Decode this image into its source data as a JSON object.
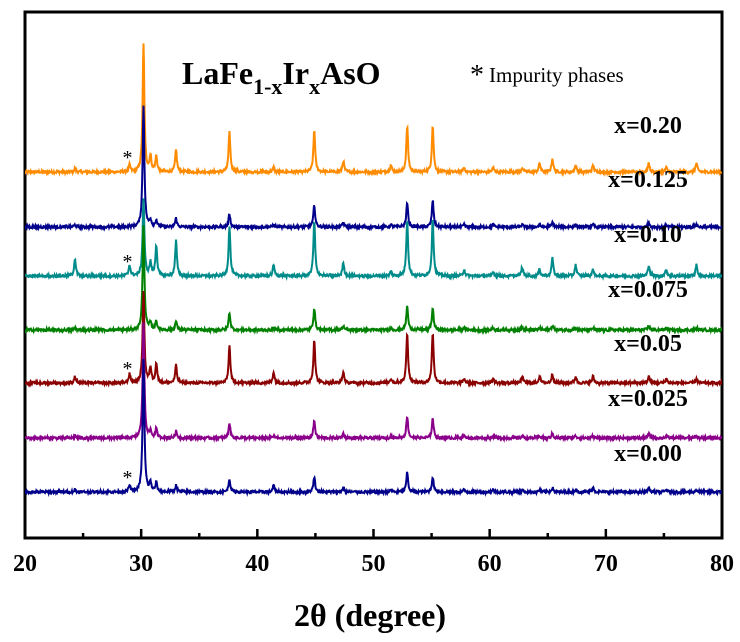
{
  "chart_data": {
    "type": "line",
    "title_main": "LaFe",
    "title_sub1": "1-x",
    "title_mid": "Ir",
    "title_sub2": "x",
    "title_end": "AsO",
    "impurity_marker": "*",
    "impurity_label": "Impurity phases",
    "xlabel": "2θ (degree)",
    "ylabel": "",
    "xlim": [
      20,
      80
    ],
    "x_ticks": [
      "20",
      "30",
      "40",
      "50",
      "60",
      "70",
      "80"
    ],
    "y_ticks_visible": false,
    "grid": false,
    "impurity_peak_2theta": 29.0,
    "peaks_2theta": [
      24.3,
      29.0,
      30.2,
      30.8,
      31.3,
      33.0,
      37.6,
      41.4,
      44.9,
      47.4,
      51.5,
      52.9,
      55.1,
      57.8,
      60.3,
      62.8,
      64.3,
      65.4,
      67.4,
      68.9,
      73.7,
      75.2,
      77.8
    ],
    "series": [
      {
        "name": "x=0.20",
        "color": "#ff8c00",
        "has_impurity": true,
        "intensities": [
          0.15,
          0.3,
          5.8,
          0.7,
          0.7,
          1.0,
          1.8,
          0.2,
          1.9,
          0.5,
          0.3,
          2.1,
          2.1,
          0.2,
          0.2,
          0.2,
          0.4,
          0.6,
          0.3,
          0.3,
          0.4,
          0.2,
          0.4
        ]
      },
      {
        "name": "x=0.125",
        "color": "#00008b",
        "has_impurity": false,
        "intensities": [
          0.1,
          0.0,
          5.5,
          0.3,
          0.3,
          0.4,
          0.6,
          0.1,
          1.0,
          0.2,
          0.1,
          1.1,
          1.2,
          0.1,
          0.1,
          0.1,
          0.1,
          0.2,
          0.1,
          0.1,
          0.2,
          0.1,
          0.1
        ]
      },
      {
        "name": "x=0.10",
        "color": "#008b8b",
        "has_impurity": true,
        "intensities": [
          0.8,
          0.5,
          3.5,
          0.6,
          1.4,
          1.6,
          2.3,
          0.5,
          2.5,
          0.6,
          0.2,
          2.6,
          2.6,
          0.3,
          0.2,
          0.4,
          0.3,
          0.8,
          0.5,
          0.3,
          0.5,
          0.3,
          0.5
        ]
      },
      {
        "name": "x=0.075",
        "color": "#008000",
        "has_impurity": false,
        "intensities": [
          0.1,
          0.0,
          4.8,
          0.3,
          0.4,
          0.4,
          0.8,
          0.1,
          1.0,
          0.2,
          0.1,
          1.1,
          1.0,
          0.1,
          0.1,
          0.1,
          0.1,
          0.2,
          0.1,
          0.1,
          0.2,
          0.1,
          0.1
        ]
      },
      {
        "name": "x=0.05",
        "color": "#8b0000",
        "has_impurity": true,
        "intensities": [
          0.3,
          0.4,
          4.2,
          0.7,
          0.9,
          0.8,
          1.7,
          0.5,
          2.0,
          0.5,
          0.2,
          2.3,
          2.3,
          0.2,
          0.2,
          0.3,
          0.3,
          0.4,
          0.3,
          0.3,
          0.3,
          0.2,
          0.2
        ]
      },
      {
        "name": "x=0.025",
        "color": "#8b008b",
        "has_impurity": false,
        "intensities": [
          0.1,
          0.0,
          5.2,
          0.3,
          0.4,
          0.3,
          0.7,
          0.1,
          0.8,
          0.2,
          0.1,
          1.0,
          0.9,
          0.1,
          0.1,
          0.1,
          0.1,
          0.2,
          0.1,
          0.1,
          0.2,
          0.1,
          0.1
        ]
      },
      {
        "name": "x=0.00",
        "color": "#00008b",
        "has_impurity": true,
        "intensities": [
          0.1,
          0.3,
          6.0,
          0.4,
          0.4,
          0.3,
          0.6,
          0.3,
          0.7,
          0.2,
          0.1,
          0.9,
          0.7,
          0.1,
          0.1,
          0.1,
          0.1,
          0.2,
          0.1,
          0.2,
          0.2,
          0.1,
          0.1
        ]
      }
    ]
  }
}
